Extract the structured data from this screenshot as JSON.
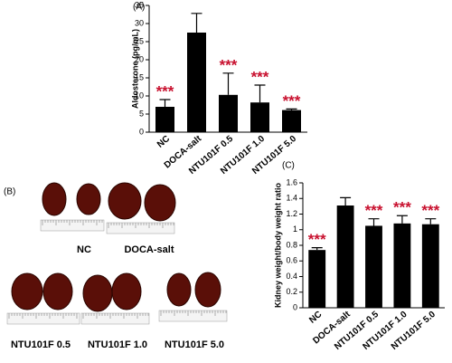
{
  "chart_data": [
    {
      "type": "bar",
      "panel_label": "(A)",
      "y_label": "Aldosterone (pg/mL)",
      "categories": [
        "NC",
        "DOCA-salt",
        "NTU101F 0.5",
        "NTU101F 1.0",
        "NTU101F 5.0"
      ],
      "values": [
        7,
        27.5,
        10.3,
        8.2,
        6.1
      ],
      "errors": [
        2,
        5.3,
        6,
        4.8,
        0.3
      ],
      "color": "#000000",
      "significance": [
        "***",
        null,
        "***",
        "***",
        "***"
      ],
      "ylim": [
        0,
        35
      ],
      "yticks": [
        0,
        5,
        10,
        15,
        20,
        25,
        30,
        35
      ]
    },
    {
      "type": "bar",
      "panel_label": "(C)",
      "y_label": "Kidney weight/body weight ratio",
      "categories": [
        "NC",
        "DOCA-salt",
        "NTU101F 0.5",
        "NTU101F 1.0",
        "NTU101F 5.0"
      ],
      "values": [
        0.74,
        1.31,
        1.05,
        1.08,
        1.07
      ],
      "errors": [
        0.03,
        0.1,
        0.09,
        0.1,
        0.07
      ],
      "color": "#000000",
      "significance": [
        "***",
        null,
        "***",
        "***",
        "***"
      ],
      "ylim": [
        0,
        1.6
      ],
      "yticks": [
        0,
        0.2,
        0.4,
        0.6,
        0.8,
        1,
        1.2,
        1.4,
        1.6
      ]
    }
  ],
  "photo_panel": {
    "panel_label": "(B)",
    "captions": [
      "NC",
      "DOCA-salt",
      "NTU101F 0.5",
      "NTU101F 1.0",
      "NTU101F 5.0"
    ]
  }
}
